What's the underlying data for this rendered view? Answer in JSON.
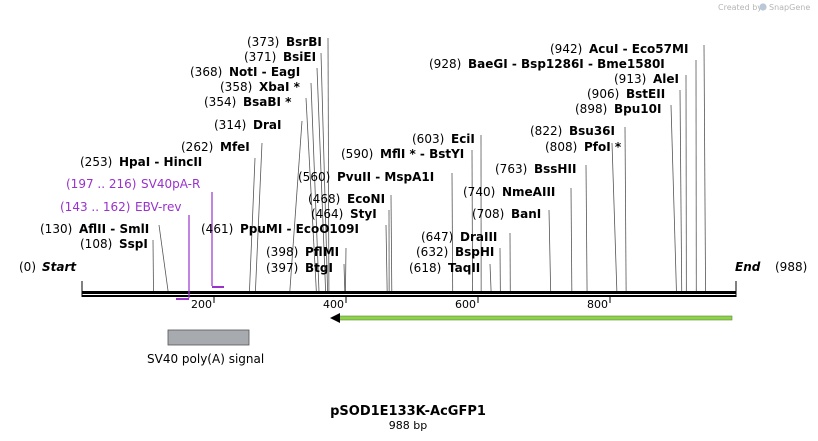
{
  "watermark": "Created by",
  "watermark_brand": "SnapGene",
  "plasmid": {
    "name": "pSOD1E133K-AcGFP1",
    "size_label": "988 bp",
    "length": 988
  },
  "ends": {
    "start_pos": "(0)",
    "start_label": "Start",
    "end_label": "End",
    "end_pos": "(988)"
  },
  "ruler": [
    "200",
    "400",
    "600",
    "800"
  ],
  "feature": {
    "name": "SV40 poly(A) signal",
    "start": 130,
    "end": 251
  },
  "arrow_feature": {
    "start": 378,
    "end": 978,
    "direction": "reverse",
    "color": "#8fd14f"
  },
  "primers": [
    {
      "pos": "(197 .. 216)",
      "name": "SV40pA-R",
      "start": 197,
      "end": 216
    },
    {
      "pos": "(143 .. 162)",
      "name": "EBV-rev",
      "start": 143,
      "end": 162
    }
  ],
  "sites": [
    {
      "pos": "(108)",
      "name": "SspI",
      "site": 108
    },
    {
      "pos": "(130)",
      "name": "AflII  -  SmlI",
      "site": 130
    },
    {
      "pos": "(253)",
      "name": "HpaI  -  HincII",
      "site": 253
    },
    {
      "pos": "(262)",
      "name": "MfeI",
      "site": 262
    },
    {
      "pos": "(314)",
      "name": "DraI",
      "site": 314
    },
    {
      "pos": "(354)",
      "name": "BsaBI *",
      "site": 354
    },
    {
      "pos": "(358)",
      "name": "XbaI *",
      "site": 358
    },
    {
      "pos": "(368)",
      "name": "NotI  -  EagI",
      "site": 368
    },
    {
      "pos": "(371)",
      "name": "BsiEI",
      "site": 371
    },
    {
      "pos": "(373)",
      "name": "BsrBI",
      "site": 373
    },
    {
      "pos": "(461)",
      "name": "PpuMI  -  EcoO109I",
      "site": 461
    },
    {
      "pos": "(397)",
      "name": "BtgI",
      "site": 397
    },
    {
      "pos": "(398)",
      "name": "PflMI",
      "site": 398
    },
    {
      "pos": "(464)",
      "name": "StyI",
      "site": 464
    },
    {
      "pos": "(468)",
      "name": "EcoNI",
      "site": 468
    },
    {
      "pos": "(560)",
      "name": "PvuII  -  MspA1I",
      "site": 560
    },
    {
      "pos": "(590)",
      "name": "MflI *  -  BstYI",
      "site": 590
    },
    {
      "pos": "(603)",
      "name": "EciI",
      "site": 603
    },
    {
      "pos": "(618)",
      "name": "TaqII",
      "site": 618
    },
    {
      "pos": "(632)",
      "name": "BspHI",
      "site": 632
    },
    {
      "pos": "(647)",
      "name": "DraIII",
      "site": 647
    },
    {
      "pos": "(708)",
      "name": "BanI",
      "site": 708
    },
    {
      "pos": "(740)",
      "name": "NmeAIII",
      "site": 740
    },
    {
      "pos": "(763)",
      "name": "BssHII",
      "site": 763
    },
    {
      "pos": "(808)",
      "name": "PfoI *",
      "site": 808
    },
    {
      "pos": "(822)",
      "name": "Bsu36I",
      "site": 822
    },
    {
      "pos": "(898)",
      "name": "Bpu10I",
      "site": 898
    },
    {
      "pos": "(906)",
      "name": "BstEII",
      "site": 906
    },
    {
      "pos": "(913)",
      "name": "AleI",
      "site": 913
    },
    {
      "pos": "(928)",
      "name": "BaeGI  -  Bsp1286I  -  Bme1580I",
      "site": 928
    },
    {
      "pos": "(942)",
      "name": "AcuI  -  Eco57MI",
      "site": 942
    }
  ]
}
